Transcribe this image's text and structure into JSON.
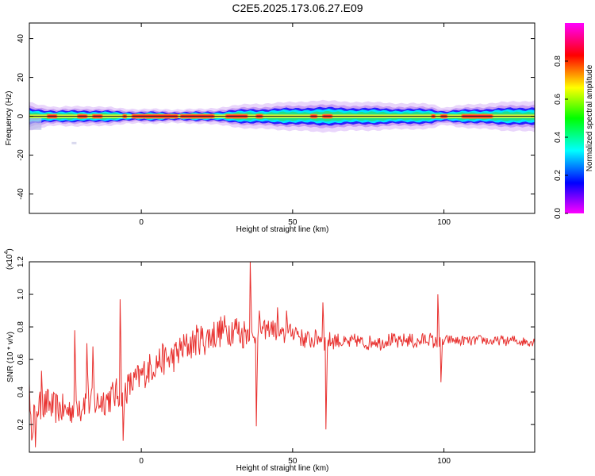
{
  "figure": {
    "title": "C2E5.2025.173.06.27.E09"
  },
  "chart_data": [
    {
      "type": "heatmap",
      "title": "C2E5.2025.173.06.27.E09",
      "xlabel": "Height of straight line (km)",
      "ylabel": "Frequency (Hz)",
      "xlim": [
        -37,
        130
      ],
      "ylim": [
        -50,
        48
      ],
      "xticks": [
        0,
        50,
        100
      ],
      "yticks": [
        -40,
        -20,
        0,
        20,
        40
      ],
      "colorbar": {
        "label": "Normalized spectral amplitude",
        "range": [
          0.0,
          1.0
        ],
        "ticks": [
          0.0,
          0.2,
          0.4,
          0.6,
          0.8
        ],
        "colormap": [
          "#ff00ff",
          "#0000ff",
          "#00ffff",
          "#00ff00",
          "#ffff00",
          "#ff0000",
          "#ff00ff"
        ]
      },
      "band": {
        "center_frequency_hz": 0,
        "core_halfwidth_hz": 1.5,
        "envelope_halfwidth_hz": [
          [
            -37,
            4
          ],
          [
            -28,
            2.5
          ],
          [
            -20,
            3
          ],
          [
            -10,
            2.5
          ],
          [
            0,
            2
          ],
          [
            20,
            2
          ],
          [
            36,
            3.5
          ],
          [
            50,
            4
          ],
          [
            58,
            4.5
          ],
          [
            75,
            4
          ],
          [
            96,
            3.5
          ],
          [
            100,
            2.5
          ],
          [
            110,
            3.5
          ],
          [
            130,
            4.5
          ]
        ],
        "hot_segments_km": [
          [
            -31,
            -28
          ],
          [
            -21,
            -18
          ],
          [
            -16,
            -13
          ],
          [
            -6,
            -5
          ],
          [
            -3,
            12
          ],
          [
            13,
            24
          ],
          [
            28,
            35
          ],
          [
            38,
            40
          ],
          [
            56,
            58
          ],
          [
            60,
            63
          ],
          [
            96,
            97
          ],
          [
            99,
            101
          ],
          [
            106,
            116
          ]
        ]
      }
    },
    {
      "type": "line",
      "title": "",
      "xlabel": "Height of straight line (km)",
      "ylabel": "SNR (10 * v/v)",
      "y_multiplier_label": "(x10",
      "y_multiplier_exponent": "4",
      "y_multiplier_suffix": ")",
      "xlim": [
        -37,
        130
      ],
      "ylim": [
        0.03,
        1.2
      ],
      "xticks": [
        0,
        50,
        100
      ],
      "yticks": [
        0.2,
        0.4,
        0.6,
        0.8,
        1.0,
        1.2
      ],
      "series": [
        {
          "color": "#e8312f",
          "x": [
            -37,
            -35,
            -33,
            -31,
            -29,
            -27,
            -25,
            -23,
            -21,
            -19,
            -17,
            -15,
            -13,
            -11,
            -9,
            -7,
            -5,
            -3,
            -1,
            1,
            3,
            5,
            7,
            9,
            11,
            13,
            15,
            17,
            19,
            21,
            23,
            25,
            27,
            29,
            31,
            33,
            35,
            37,
            39,
            41,
            43,
            45,
            47,
            49,
            51,
            53,
            55,
            57,
            59,
            61,
            63,
            65,
            67,
            69,
            71,
            73,
            75,
            77,
            79,
            81,
            83,
            85,
            87,
            89,
            91,
            93,
            95,
            97,
            99,
            101,
            103,
            105,
            107,
            109,
            111,
            113,
            115,
            117,
            119,
            121,
            123,
            125,
            127,
            129
          ],
          "values": [
            0.12,
            0.32,
            0.3,
            0.33,
            0.3,
            0.3,
            0.28,
            0.3,
            0.33,
            0.35,
            0.33,
            0.33,
            0.35,
            0.36,
            0.38,
            0.4,
            0.42,
            0.45,
            0.48,
            0.52,
            0.55,
            0.58,
            0.6,
            0.6,
            0.62,
            0.66,
            0.68,
            0.7,
            0.73,
            0.72,
            0.75,
            0.76,
            0.78,
            0.78,
            0.8,
            0.75,
            0.78,
            0.72,
            0.78,
            0.78,
            0.8,
            0.76,
            0.74,
            0.76,
            0.78,
            0.73,
            0.72,
            0.72,
            0.74,
            0.7,
            0.72,
            0.72,
            0.7,
            0.7,
            0.72,
            0.7,
            0.7,
            0.72,
            0.7,
            0.72,
            0.72,
            0.7,
            0.72,
            0.72,
            0.7,
            0.72,
            0.73,
            0.7,
            0.7,
            0.72,
            0.72,
            0.71,
            0.72,
            0.71,
            0.72,
            0.72,
            0.71,
            0.71,
            0.72,
            0.71,
            0.72,
            0.71,
            0.71,
            0.71
          ]
        }
      ],
      "spikes": [
        {
          "x": -37,
          "y": 0.45
        },
        {
          "x": -35,
          "y": 0.06
        },
        {
          "x": -33,
          "y": 0.53
        },
        {
          "x": -22,
          "y": 0.78
        },
        {
          "x": -20,
          "y": 0.22
        },
        {
          "x": -18,
          "y": 0.7
        },
        {
          "x": -16,
          "y": 0.68
        },
        {
          "x": -7,
          "y": 0.97
        },
        {
          "x": -6,
          "y": 0.1
        },
        {
          "x": 36,
          "y": 1.2
        },
        {
          "x": 38,
          "y": 0.19
        },
        {
          "x": 39,
          "y": 0.9
        },
        {
          "x": 40,
          "y": 0.8
        },
        {
          "x": 45,
          "y": 0.92
        },
        {
          "x": 48,
          "y": 0.9
        },
        {
          "x": 60,
          "y": 0.95
        },
        {
          "x": 61,
          "y": 0.17
        },
        {
          "x": 98,
          "y": 1.0
        },
        {
          "x": 99,
          "y": 0.46
        }
      ]
    }
  ]
}
